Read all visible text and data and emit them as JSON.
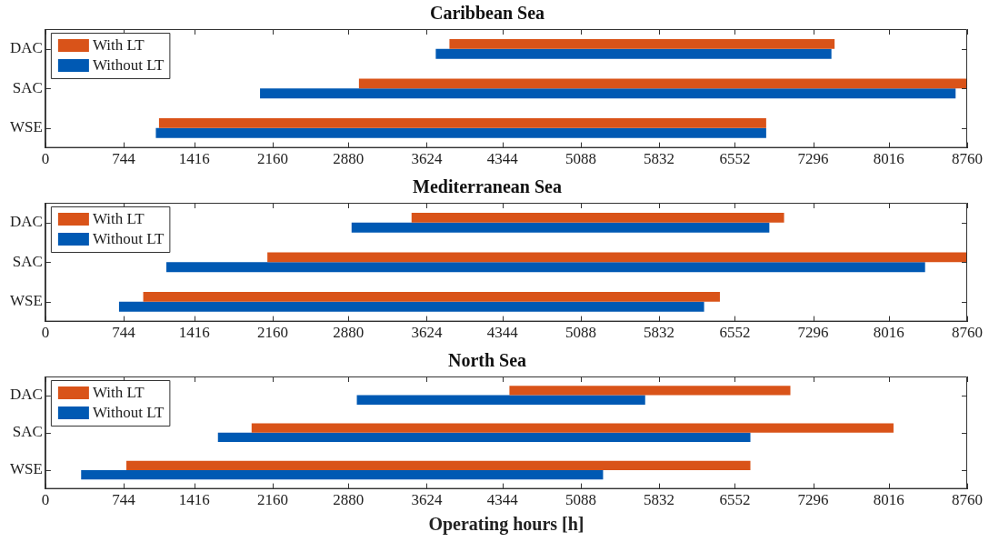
{
  "chart_data": [
    {
      "type": "bar",
      "orientation": "horizontal",
      "title": "Caribbean Sea",
      "categories": [
        "DAC",
        "SAC",
        "WSE"
      ],
      "legend": "top left",
      "grid": false,
      "xlim": [
        0,
        8760
      ],
      "xticks": [
        0,
        744,
        1416,
        2160,
        2880,
        3624,
        4344,
        5088,
        5832,
        6552,
        7296,
        8016,
        8760
      ],
      "series": [
        {
          "name": "With LT",
          "color": "#d95319",
          "base": [
            3840,
            2980,
            1080
          ],
          "values": [
            3660,
            5780,
            5770
          ]
        },
        {
          "name": "Without LT",
          "color": "#0059b3",
          "base": [
            3710,
            2040,
            1050
          ],
          "values": [
            3760,
            6610,
            5800
          ]
        }
      ]
    },
    {
      "type": "bar",
      "orientation": "horizontal",
      "title": "Mediterranean Sea",
      "categories": [
        "DAC",
        "SAC",
        "WSE"
      ],
      "legend": "top left",
      "grid": false,
      "xlim": [
        0,
        8760
      ],
      "xticks": [
        0,
        744,
        1416,
        2160,
        2880,
        3624,
        4344,
        5088,
        5832,
        6552,
        7296,
        8016,
        8760
      ],
      "series": [
        {
          "name": "With LT",
          "color": "#d95319",
          "base": [
            3480,
            2110,
            930
          ],
          "values": [
            3540,
            6650,
            5480
          ]
        },
        {
          "name": "Without LT",
          "color": "#0059b3",
          "base": [
            2910,
            1150,
            700
          ],
          "values": [
            3970,
            7210,
            5560
          ]
        }
      ]
    },
    {
      "type": "bar",
      "orientation": "horizontal",
      "title": "North Sea",
      "xlabel": "Operating hours [h]",
      "categories": [
        "DAC",
        "SAC",
        "WSE"
      ],
      "legend": "top left",
      "grid": false,
      "xlim": [
        0,
        8760
      ],
      "xticks": [
        0,
        744,
        1416,
        2160,
        2880,
        3624,
        4344,
        5088,
        5832,
        6552,
        7296,
        8016,
        8760
      ],
      "series": [
        {
          "name": "With LT",
          "color": "#d95319",
          "base": [
            4410,
            1960,
            770
          ],
          "values": [
            2670,
            6100,
            5930
          ]
        },
        {
          "name": "Without LT",
          "color": "#0059b3",
          "base": [
            2960,
            1640,
            340
          ],
          "values": [
            2740,
            5060,
            4960
          ]
        }
      ]
    }
  ]
}
